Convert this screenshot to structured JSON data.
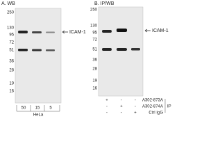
{
  "panel_a": {
    "title": "A. WB",
    "markers": [
      250,
      130,
      95,
      72,
      51,
      36,
      28,
      19,
      16
    ],
    "target": "ICAM-1",
    "lanes": [
      "50",
      "15",
      "5"
    ],
    "sample": "HeLa"
  },
  "panel_b": {
    "title": "B. IP/WB",
    "markers": [
      250,
      130,
      95,
      72,
      51,
      36,
      28,
      19,
      16
    ],
    "target": "ICAM-1",
    "rows": [
      {
        "label": "A302-873A",
        "signs": [
          "+",
          "-",
          "-"
        ]
      },
      {
        "label": "A302-874A",
        "signs": [
          "-",
          "+",
          "-"
        ]
      },
      {
        "label": "Ctrl IgG",
        "signs": [
          "-",
          "-",
          "+"
        ]
      }
    ],
    "group": "IP"
  }
}
